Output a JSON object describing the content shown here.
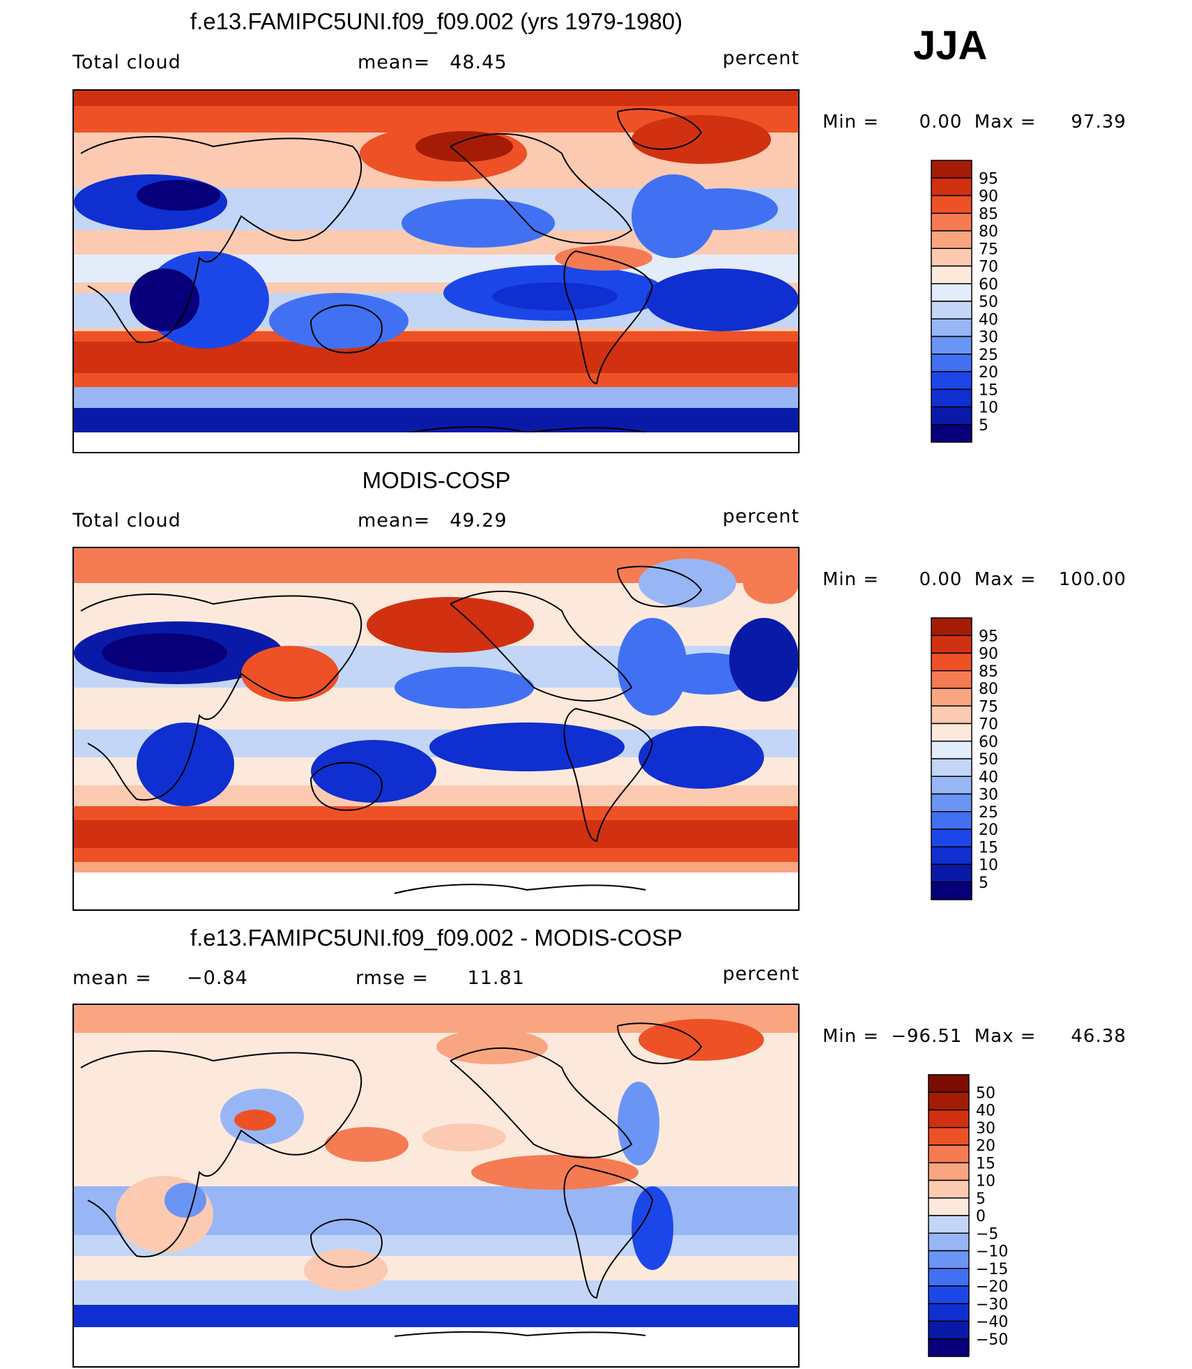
{
  "season": "JJA",
  "chart_data": [
    {
      "type": "heatmap",
      "title": "f.e13.FAMIPC5UNI.f09_f09.002 (yrs 1979-1980)",
      "variable": "Total cloud",
      "stat_label": "mean=",
      "stat_value": "48.45",
      "units": "percent",
      "min_label": "Min =",
      "min": "0.00",
      "max_label": "Max =",
      "max": "97.39",
      "colorbar_levels": [
        "5",
        "10",
        "15",
        "20",
        "25",
        "30",
        "40",
        "50",
        "60",
        "70",
        "75",
        "80",
        "85",
        "90",
        "95"
      ],
      "colorbar_colors": [
        "#07007a",
        "#0a1aa8",
        "#0f2fd0",
        "#1c47e8",
        "#4171f2",
        "#6b95f5",
        "#98b6f5",
        "#c3d6f7",
        "#e3ecfa",
        "#fde9dc",
        "#fccab1",
        "#f9a581",
        "#f57b53",
        "#ee5125",
        "#d13110",
        "#a51c06"
      ]
    },
    {
      "type": "heatmap",
      "title": "MODIS-COSP",
      "variable": "Total cloud",
      "stat_label": "mean=",
      "stat_value": "49.29",
      "units": "percent",
      "min_label": "Min =",
      "min": "0.00",
      "max_label": "Max =",
      "max": "100.00",
      "colorbar_levels": [
        "5",
        "10",
        "15",
        "20",
        "25",
        "30",
        "40",
        "50",
        "60",
        "70",
        "75",
        "80",
        "85",
        "90",
        "95"
      ],
      "colorbar_colors": [
        "#07007a",
        "#0a1aa8",
        "#0f2fd0",
        "#1c47e8",
        "#4171f2",
        "#6b95f5",
        "#98b6f5",
        "#c3d6f7",
        "#e3ecfa",
        "#fde9dc",
        "#fccab1",
        "#f9a581",
        "#f57b53",
        "#ee5125",
        "#d13110",
        "#a51c06"
      ]
    },
    {
      "type": "heatmap",
      "title": "f.e13.FAMIPC5UNI.f09_f09.002 - MODIS-COSP",
      "stat_label": "mean =",
      "stat_value": "−0.84",
      "stat2_label": "rmse =",
      "stat2_value": "11.81",
      "units": "percent",
      "min_label": "Min =",
      "min": "−96.51",
      "max_label": "Max =",
      "max": "46.38",
      "colorbar_levels": [
        "−50",
        "−40",
        "−30",
        "−20",
        "−15",
        "−10",
        "−5",
        "0",
        "5",
        "10",
        "15",
        "20",
        "30",
        "40",
        "50"
      ],
      "colorbar_colors": [
        "#07007a",
        "#0a1aa8",
        "#0f2fd0",
        "#1c47e8",
        "#4171f2",
        "#6b95f5",
        "#98b6f5",
        "#c3d6f7",
        "#fde9dc",
        "#fccab1",
        "#f9a581",
        "#f57b53",
        "#ee5125",
        "#d13110",
        "#a51c06",
        "#7c0c02"
      ]
    }
  ]
}
